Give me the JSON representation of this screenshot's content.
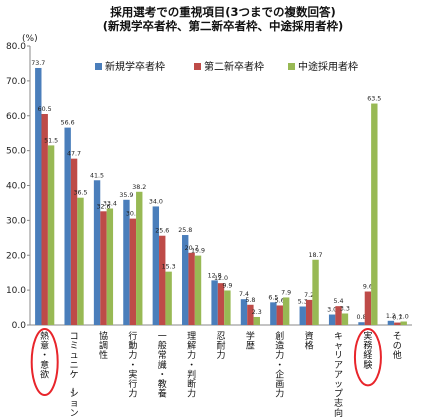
{
  "chart_data": {
    "type": "bar",
    "title": "採用選考での重視項目(3つまでの複数回答)",
    "subtitle": "(新規学卒者枠、第二新卒者枠、中途採用者枠)",
    "ylabel": "(%)",
    "ylim": [
      0,
      80
    ],
    "yticks": [
      "0.0",
      "10.0",
      "20.0",
      "30.0",
      "40.0",
      "50.0",
      "60.0",
      "70.0",
      "80.0"
    ],
    "grid": false,
    "legend_position": "top-right",
    "categories": [
      "熱意・意欲",
      "コミュニケーション力",
      "協調性",
      "行動力・実行力",
      "一般常識・教養",
      "理解力・判断力",
      "忍耐力",
      "学歴",
      "創造力・企画力",
      "資格",
      "キャリアアップ志向",
      "実務経験",
      "その他"
    ],
    "series": [
      {
        "name": "新規学卒者枠",
        "color": "#4a7ebb",
        "values": [
          73.7,
          56.6,
          41.5,
          35.9,
          34.0,
          25.8,
          12.8,
          7.4,
          6.5,
          5.3,
          3.0,
          0.8,
          1.2
        ]
      },
      {
        "name": "第二新卒者枠",
        "color": "#be4b48",
        "values": [
          60.5,
          47.7,
          32.6,
          30.5,
          25.6,
          20.7,
          12.0,
          5.8,
          5.6,
          7.2,
          5.4,
          9.6,
          0.7
        ]
      },
      {
        "name": "中途採用者枠",
        "color": "#98b954",
        "values": [
          51.5,
          36.5,
          33.4,
          38.2,
          15.3,
          19.9,
          9.9,
          2.3,
          7.9,
          18.7,
          3.3,
          63.5,
          1.0
        ]
      }
    ],
    "value_labels": [
      [
        "73.7",
        "60.5",
        "51.5"
      ],
      [
        "56.6",
        "47.7",
        "36.5"
      ],
      [
        "41.5",
        "32.6",
        "33.4"
      ],
      [
        "35.9",
        "30.5",
        "38.2"
      ],
      [
        "34.0",
        "25.6",
        "15.3"
      ],
      [
        "25.8",
        "20.7",
        "19.9"
      ],
      [
        "12.8",
        "12.0",
        "9.9"
      ],
      [
        "7.4",
        "5.8",
        "2.3"
      ],
      [
        "6.5",
        "5.6",
        "7.9"
      ],
      [
        "5.3",
        "7.2",
        "18.7"
      ],
      [
        "3.0",
        "5.4",
        "3.3"
      ],
      [
        "0.8",
        "9.6",
        "63.5"
      ],
      [
        "1.2",
        "0.7",
        "1.0"
      ]
    ],
    "highlighted_categories": [
      "熱意・意欲",
      "実務経験"
    ],
    "highlight_color": "#e8252b"
  }
}
